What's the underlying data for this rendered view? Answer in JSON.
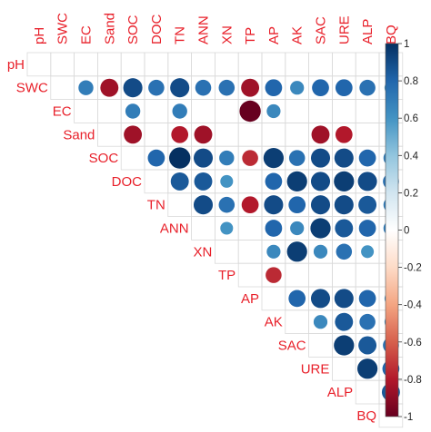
{
  "chart_data": {
    "type": "heatmap",
    "variables": [
      "pH",
      "SWC",
      "EC",
      "Sand",
      "SOC",
      "DOC",
      "TN",
      "ANN",
      "XN",
      "TP",
      "AP",
      "AK",
      "SAC",
      "URE",
      "ALP",
      "BQ"
    ],
    "legend_ticks": [
      "1",
      "0.8",
      "0.6",
      "0.4",
      "0.2",
      "0",
      "-0.2",
      "-0.4",
      "-0.6",
      "-0.8",
      "-1"
    ],
    "legend_range": [
      -1,
      1
    ],
    "cells": [
      {
        "row": "SWC",
        "col": "EC",
        "value": 0.7
      },
      {
        "row": "SWC",
        "col": "Sand",
        "value": -0.85
      },
      {
        "row": "SWC",
        "col": "SOC",
        "value": 0.9
      },
      {
        "row": "SWC",
        "col": "DOC",
        "value": 0.75
      },
      {
        "row": "SWC",
        "col": "TN",
        "value": 0.9
      },
      {
        "row": "SWC",
        "col": "ANN",
        "value": 0.75
      },
      {
        "row": "SWC",
        "col": "XN",
        "value": 0.75
      },
      {
        "row": "SWC",
        "col": "TP",
        "value": -0.85
      },
      {
        "row": "SWC",
        "col": "AP",
        "value": 0.8
      },
      {
        "row": "SWC",
        "col": "AK",
        "value": 0.65
      },
      {
        "row": "SWC",
        "col": "SAC",
        "value": 0.8
      },
      {
        "row": "SWC",
        "col": "URE",
        "value": 0.8
      },
      {
        "row": "SWC",
        "col": "ALP",
        "value": 0.75
      },
      {
        "row": "SWC",
        "col": "BQ",
        "value": 0.6
      },
      {
        "row": "EC",
        "col": "SOC",
        "value": 0.7
      },
      {
        "row": "EC",
        "col": "TN",
        "value": 0.7
      },
      {
        "row": "EC",
        "col": "TP",
        "value": -1.0
      },
      {
        "row": "EC",
        "col": "AP",
        "value": 0.65
      },
      {
        "row": "Sand",
        "col": "SOC",
        "value": -0.85
      },
      {
        "row": "Sand",
        "col": "TN",
        "value": -0.8
      },
      {
        "row": "Sand",
        "col": "ANN",
        "value": -0.85
      },
      {
        "row": "Sand",
        "col": "SAC",
        "value": -0.85
      },
      {
        "row": "Sand",
        "col": "URE",
        "value": -0.8
      },
      {
        "row": "SOC",
        "col": "DOC",
        "value": 0.8
      },
      {
        "row": "SOC",
        "col": "TN",
        "value": 1.0
      },
      {
        "row": "SOC",
        "col": "ANN",
        "value": 0.9
      },
      {
        "row": "SOC",
        "col": "XN",
        "value": 0.7
      },
      {
        "row": "SOC",
        "col": "TP",
        "value": -0.75
      },
      {
        "row": "SOC",
        "col": "AP",
        "value": 0.95
      },
      {
        "row": "SOC",
        "col": "AK",
        "value": 0.75
      },
      {
        "row": "SOC",
        "col": "SAC",
        "value": 0.9
      },
      {
        "row": "SOC",
        "col": "URE",
        "value": 0.9
      },
      {
        "row": "SOC",
        "col": "ALP",
        "value": 0.8
      },
      {
        "row": "SOC",
        "col": "BQ",
        "value": 0.7
      },
      {
        "row": "DOC",
        "col": "TN",
        "value": 0.85
      },
      {
        "row": "DOC",
        "col": "ANN",
        "value": 0.85
      },
      {
        "row": "DOC",
        "col": "XN",
        "value": 0.6
      },
      {
        "row": "DOC",
        "col": "AP",
        "value": 0.8
      },
      {
        "row": "DOC",
        "col": "AK",
        "value": 0.95
      },
      {
        "row": "DOC",
        "col": "SAC",
        "value": 0.9
      },
      {
        "row": "DOC",
        "col": "URE",
        "value": 0.95
      },
      {
        "row": "DOC",
        "col": "ALP",
        "value": 0.9
      },
      {
        "row": "DOC",
        "col": "BQ",
        "value": 0.75
      },
      {
        "row": "TN",
        "col": "ANN",
        "value": 0.9
      },
      {
        "row": "TN",
        "col": "XN",
        "value": 0.75
      },
      {
        "row": "TN",
        "col": "TP",
        "value": -0.8
      },
      {
        "row": "TN",
        "col": "AP",
        "value": 0.9
      },
      {
        "row": "TN",
        "col": "AK",
        "value": 0.8
      },
      {
        "row": "TN",
        "col": "SAC",
        "value": 0.9
      },
      {
        "row": "TN",
        "col": "URE",
        "value": 0.9
      },
      {
        "row": "TN",
        "col": "ALP",
        "value": 0.85
      },
      {
        "row": "TN",
        "col": "BQ",
        "value": 0.7
      },
      {
        "row": "ANN",
        "col": "XN",
        "value": 0.6
      },
      {
        "row": "ANN",
        "col": "AP",
        "value": 0.8
      },
      {
        "row": "ANN",
        "col": "AK",
        "value": 0.65
      },
      {
        "row": "ANN",
        "col": "SAC",
        "value": 0.95
      },
      {
        "row": "ANN",
        "col": "URE",
        "value": 0.85
      },
      {
        "row": "ANN",
        "col": "ALP",
        "value": 0.8
      },
      {
        "row": "ANN",
        "col": "BQ",
        "value": 0.7
      },
      {
        "row": "XN",
        "col": "AP",
        "value": 0.65
      },
      {
        "row": "XN",
        "col": "AK",
        "value": 0.95
      },
      {
        "row": "XN",
        "col": "SAC",
        "value": 0.65
      },
      {
        "row": "XN",
        "col": "URE",
        "value": 0.75
      },
      {
        "row": "XN",
        "col": "ALP",
        "value": 0.6
      },
      {
        "row": "TP",
        "col": "AP",
        "value": -0.75
      },
      {
        "row": "AP",
        "col": "AK",
        "value": 0.8
      },
      {
        "row": "AP",
        "col": "SAC",
        "value": 0.9
      },
      {
        "row": "AP",
        "col": "URE",
        "value": 0.9
      },
      {
        "row": "AP",
        "col": "ALP",
        "value": 0.8
      },
      {
        "row": "AP",
        "col": "BQ",
        "value": 0.6
      },
      {
        "row": "AK",
        "col": "SAC",
        "value": 0.65
      },
      {
        "row": "AK",
        "col": "URE",
        "value": 0.85
      },
      {
        "row": "AK",
        "col": "ALP",
        "value": 0.75
      },
      {
        "row": "AK",
        "col": "BQ",
        "value": 0.6
      },
      {
        "row": "SAC",
        "col": "URE",
        "value": 0.95
      },
      {
        "row": "SAC",
        "col": "ALP",
        "value": 0.85
      },
      {
        "row": "SAC",
        "col": "BQ",
        "value": 0.75
      },
      {
        "row": "URE",
        "col": "ALP",
        "value": 0.95
      },
      {
        "row": "URE",
        "col": "BQ",
        "value": 0.8
      },
      {
        "row": "ALP",
        "col": "BQ",
        "value": 0.85
      }
    ]
  }
}
